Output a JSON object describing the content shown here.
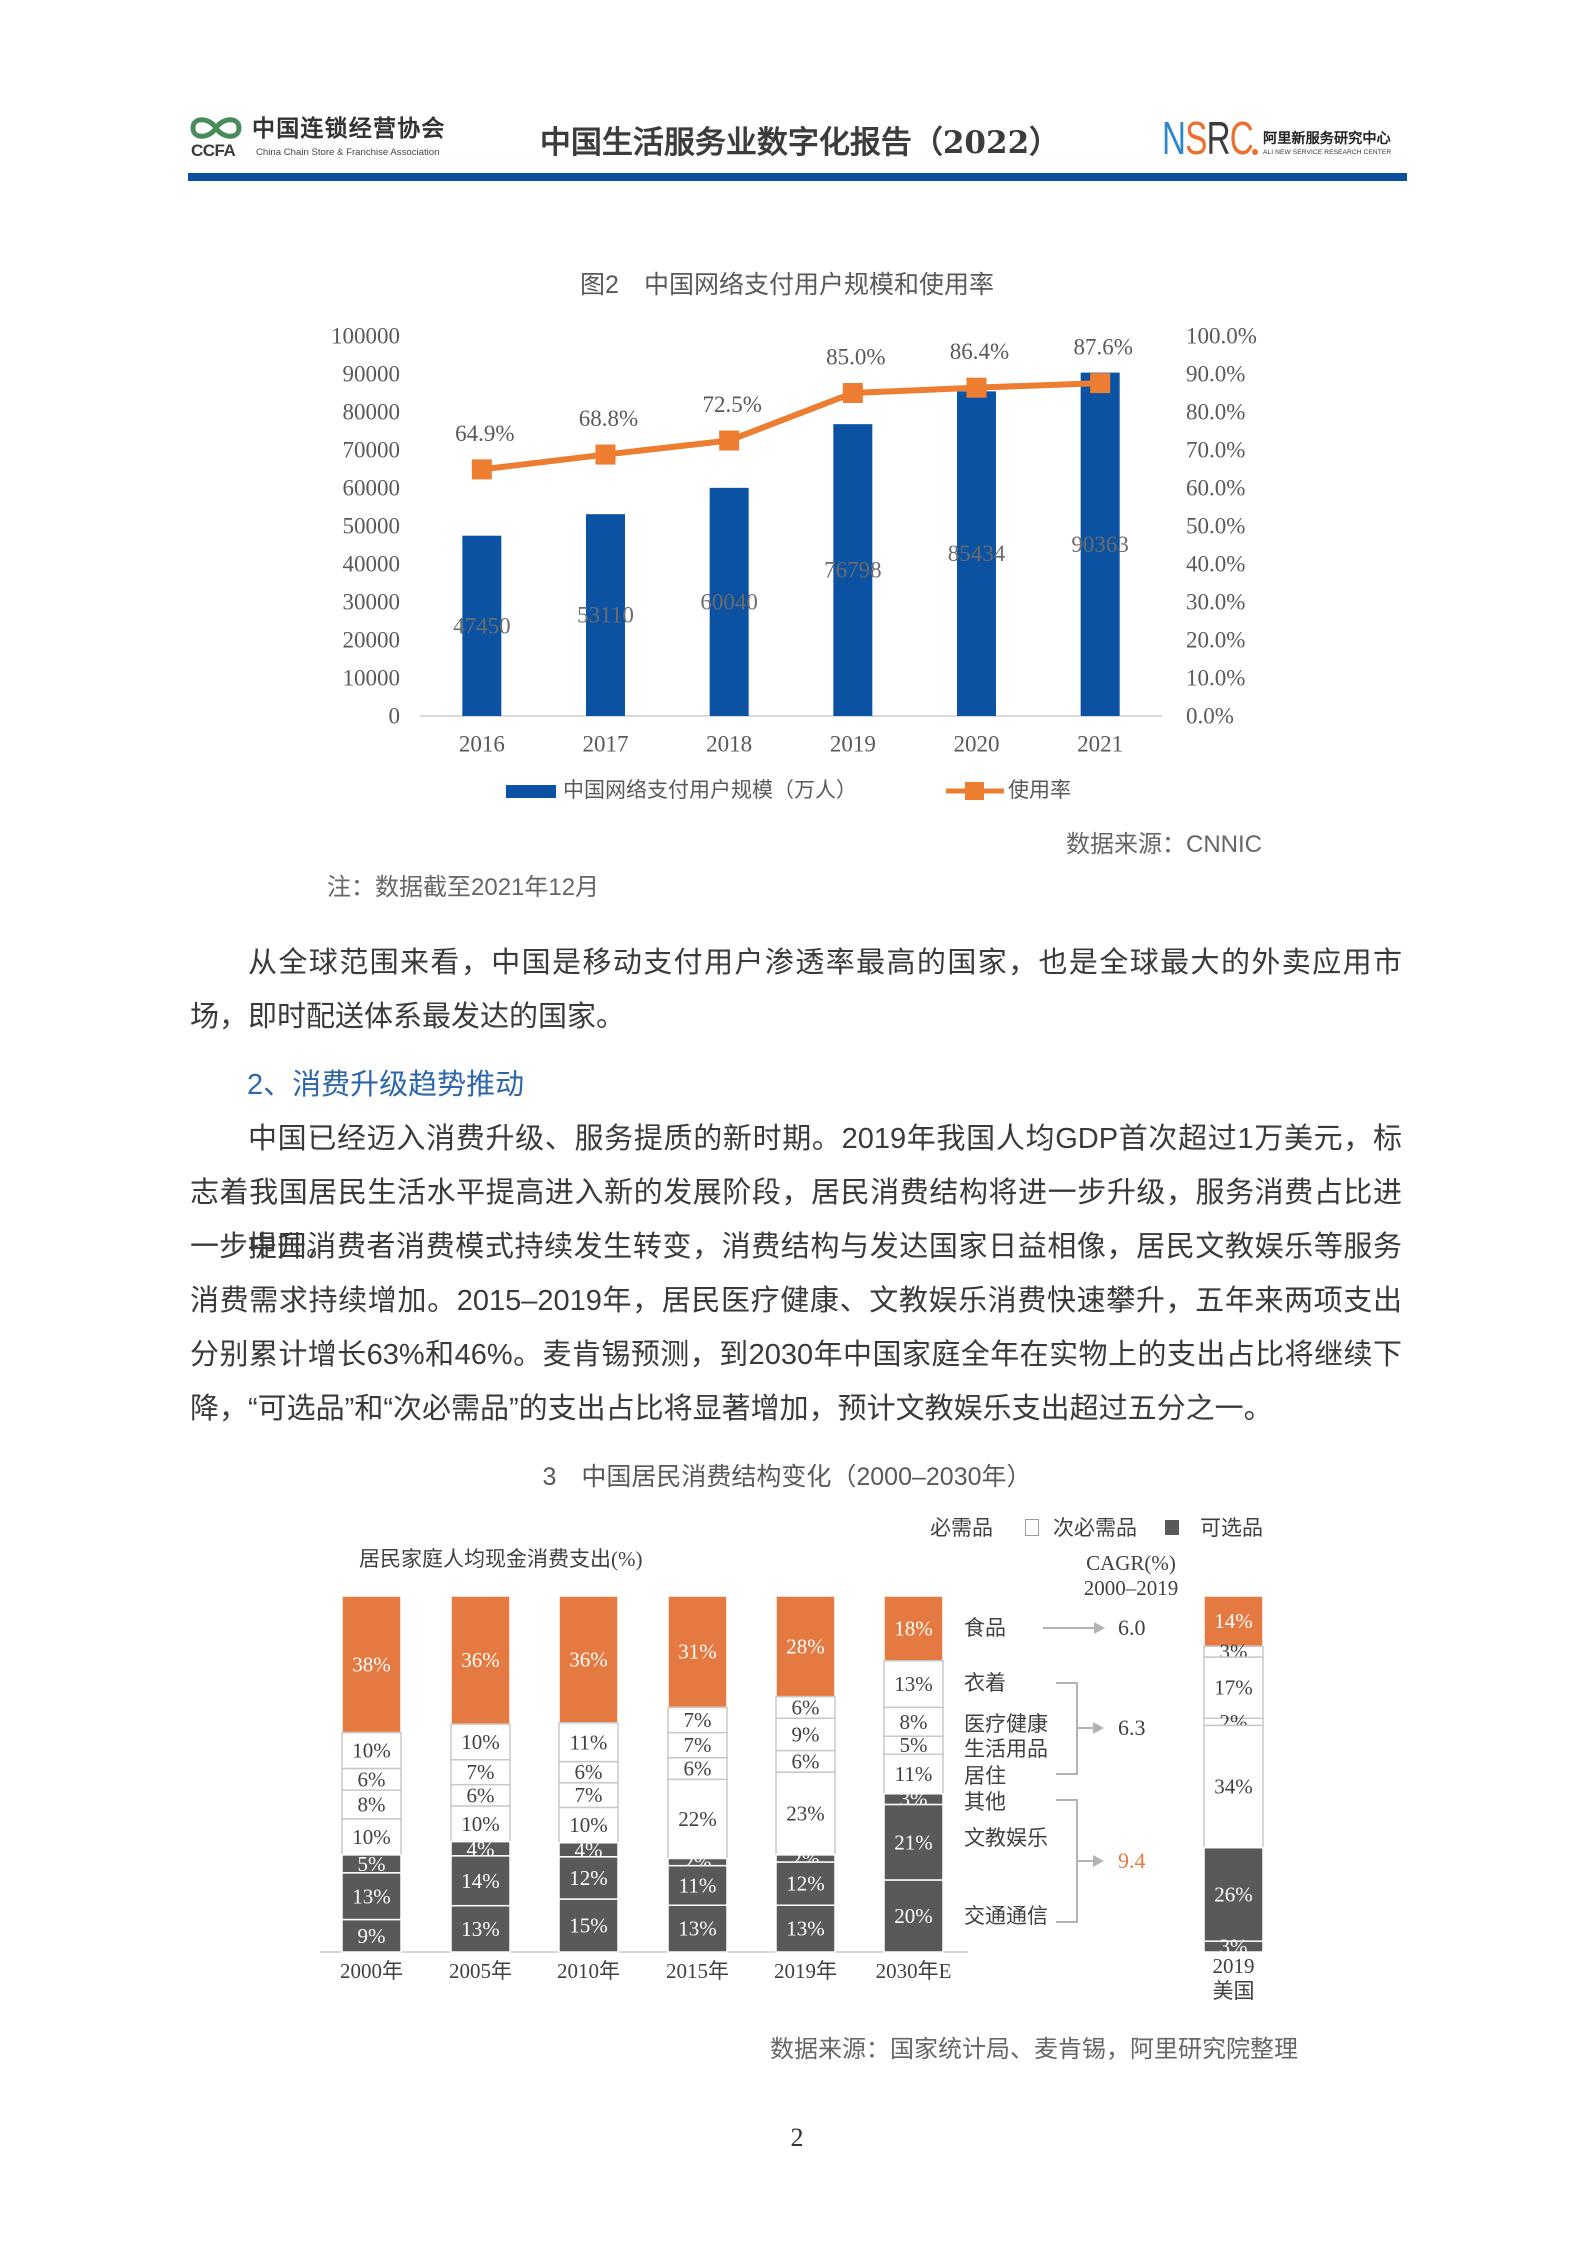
{
  "header": {
    "left_logo": {
      "abbr": "CCFA",
      "name_cn": "中国连锁经营协会",
      "name_en": "China Chain Store & Franchise Association",
      "color": "#4b8b5c"
    },
    "title": "中国生活服务业数字化报告（2022）",
    "right_logo": {
      "letters": [
        "N",
        "S",
        "R",
        "C"
      ],
      "name_cn": "阿里新服务研究中心",
      "name_en": "ALI NEW SERVICE RESEARCH CENTER"
    },
    "rule_color": "#0b4fa0"
  },
  "body": {
    "paragraph_1": "从全球范围来看，中国是移动支付用户渗透率最高的国家，也是全球最大的外卖应用市场，即时配送体系最发达的国家。",
    "section_heading": "2、消费升级趋势推动",
    "paragraph_2": "中国已经迈入消费升级、服务提质的新时期。2019年我国人均GDP首次超过1万美元，标志着我国居民生活水平提高进入新的发展阶段，居民消费结构将进一步升级，服务消费占比进一步提升。",
    "paragraph_3": "中国消费者消费模式持续发生转变，消费结构与发达国家日益相像，居民文教娱乐等服务消费需求持续增加。2015–2019年，居民医疗健康、文教娱乐消费快速攀升，五年来两项支出分别累计增长63%和46%。麦肯锡预测，到2030年中国家庭全年在实物上的支出占比将继续下降，“可选品”和“次必需品”的支出占比将显著增加，预计文教娱乐支出超过五分之一。"
  },
  "page_number": "2",
  "chart_data": [
    {
      "type": "bar+line",
      "title": "图2　中国网络支付用户规模和使用率",
      "categories": [
        "2016",
        "2017",
        "2018",
        "2019",
        "2020",
        "2021"
      ],
      "series": [
        {
          "name": "中国网络支付用户规模（万人）",
          "type": "bar",
          "axis": "left",
          "values": [
            47450,
            53110,
            60040,
            76798,
            85434,
            90363
          ],
          "color": "#0b52a3"
        },
        {
          "name": "使用率",
          "type": "line",
          "axis": "right",
          "marker": "square",
          "values": [
            64.9,
            68.8,
            72.5,
            85.0,
            86.4,
            87.6
          ],
          "labels": [
            "64.9%",
            "68.8%",
            "72.5%",
            "85.0%",
            "86.4%",
            "87.6%"
          ],
          "color": "#ed7d31"
        }
      ],
      "xlabel": "",
      "ylabel": "",
      "y_left": {
        "ylim": [
          0,
          100000
        ],
        "ticks": [
          0,
          10000,
          20000,
          30000,
          40000,
          50000,
          60000,
          70000,
          80000,
          90000,
          100000
        ]
      },
      "y_right": {
        "ylim": [
          0,
          100
        ],
        "ticks": [
          "0.0%",
          "10.0%",
          "20.0%",
          "30.0%",
          "40.0%",
          "50.0%",
          "60.0%",
          "70.0%",
          "80.0%",
          "90.0%",
          "100.0%"
        ]
      },
      "grid": false,
      "legend_position": "bottom",
      "source": "数据来源：CNNIC",
      "note": "注：数据截至2021年12月"
    },
    {
      "type": "stacked_bar",
      "title": "3　中国居民消费结构变化（2000–2030年）",
      "ylabel": "居民家庭人均现金消费支出(%)",
      "legend": [
        {
          "name": "必需品",
          "color": "#e47a42"
        },
        {
          "name": "次必需品",
          "color": "#ffffff"
        },
        {
          "name": "可选品",
          "color": "#58595b"
        }
      ],
      "colors": {
        "必需品": "#e47a42",
        "次必需品": "#ffffff",
        "可选品": "#58595b"
      },
      "segment_categories": [
        "食品",
        "衣着",
        "医疗健康",
        "生活用品",
        "居住",
        "其他",
        "文教娱乐",
        "交通通信"
      ],
      "segment_groups": [
        "必需品",
        "次必需品",
        "次必需品",
        "次必需品",
        "次必需品",
        "可选品",
        "可选品",
        "可选品"
      ],
      "bars": [
        {
          "label_lines": [
            "2000年"
          ],
          "values": [
            38,
            10,
            6,
            8,
            10,
            5,
            13,
            9
          ]
        },
        {
          "label_lines": [
            "2005年"
          ],
          "values": [
            36,
            10,
            7,
            6,
            10,
            4,
            14,
            13
          ]
        },
        {
          "label_lines": [
            "2010年"
          ],
          "values": [
            36,
            11,
            6,
            7,
            10,
            4,
            12,
            15
          ]
        },
        {
          "label_lines": [
            "2015年"
          ],
          "values": [
            31,
            7,
            7,
            6,
            22,
            2,
            11,
            13
          ]
        },
        {
          "label_lines": [
            "2019年"
          ],
          "values": [
            28,
            6,
            9,
            6,
            23,
            2,
            12,
            13
          ]
        },
        {
          "label_lines": [
            "2030年E"
          ],
          "values": [
            18,
            13,
            8,
            5,
            11,
            3,
            21,
            20
          ]
        },
        {
          "label_lines": [
            "2019",
            "美国"
          ],
          "values": [
            14,
            3,
            17,
            2,
            34,
            null,
            26,
            3
          ]
        }
      ],
      "cagr": {
        "title": "CAGR(%)",
        "period": "2000–2019",
        "groups": [
          {
            "categories": [
              "食品"
            ],
            "value": "6.0"
          },
          {
            "categories": [
              "衣着",
              "医疗健康",
              "生活用品",
              "居住"
            ],
            "value": "6.3"
          },
          {
            "categories": [
              "其他",
              "文教娱乐",
              "交通通信"
            ],
            "value": "9.4",
            "color": "#e47a42"
          }
        ]
      },
      "ylim": [
        0,
        100
      ],
      "grid": false,
      "legend_position": "top-right",
      "source": "数据来源：国家统计局、麦肯锡，阿里研究院整理"
    }
  ]
}
